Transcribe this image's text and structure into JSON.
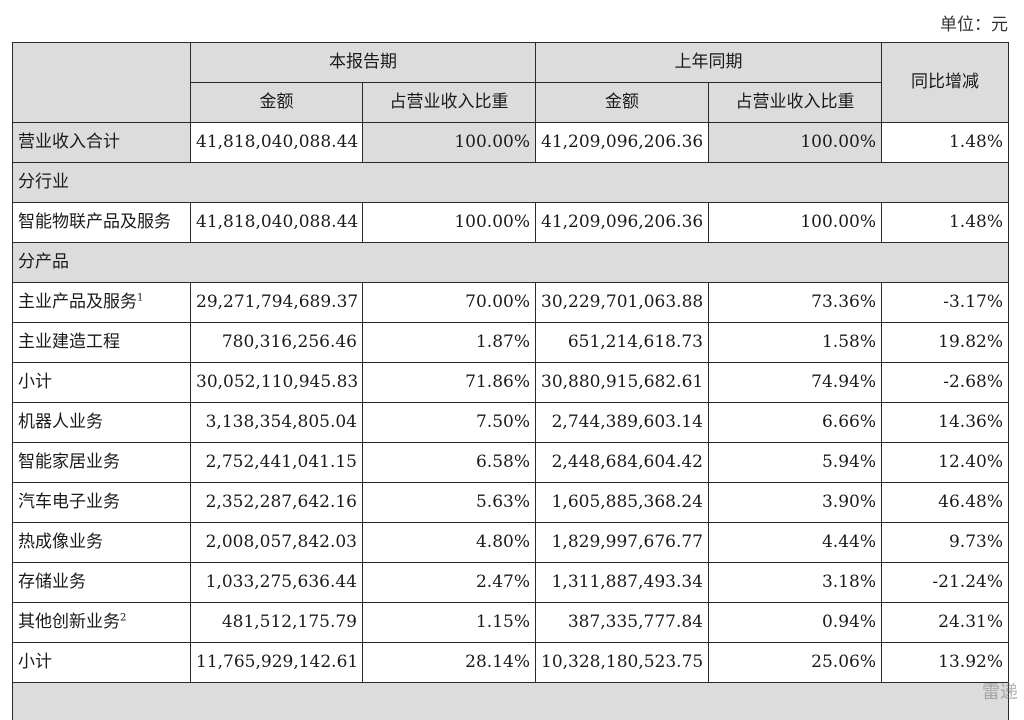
{
  "unit_label": "单位：元",
  "header": {
    "current_period": "本报告期",
    "prior_period": "上年同期",
    "yoy_change": "同比增减",
    "amount": "金额",
    "share": "占营业收入比重"
  },
  "rows": {
    "total": {
      "label": "营业收入合计",
      "cur_amt": "41,818,040,088.44",
      "cur_pct": "100.00%",
      "prev_amt": "41,209,096,206.36",
      "prev_pct": "100.00%",
      "yoy": "1.48%"
    },
    "section_industry": "分行业",
    "iot": {
      "label": "智能物联产品及服务",
      "cur_amt": "41,818,040,088.44",
      "cur_pct": "100.00%",
      "prev_amt": "41,209,096,206.36",
      "prev_pct": "100.00%",
      "yoy": "1.48%"
    },
    "section_product": "分产品",
    "main_products": {
      "label": "主业产品及服务",
      "note": "1",
      "cur_amt": "29,271,794,689.37",
      "cur_pct": "70.00%",
      "prev_amt": "30,229,701,063.88",
      "prev_pct": "73.36%",
      "yoy": "-3.17%"
    },
    "main_construction": {
      "label": "主业建造工程",
      "cur_amt": "780,316,256.46",
      "cur_pct": "1.87%",
      "prev_amt": "651,214,618.73",
      "prev_pct": "1.58%",
      "yoy": "19.82%"
    },
    "subtotal1": {
      "label": "小计",
      "cur_amt": "30,052,110,945.83",
      "cur_pct": "71.86%",
      "prev_amt": "30,880,915,682.61",
      "prev_pct": "74.94%",
      "yoy": "-2.68%"
    },
    "robot": {
      "label": "机器人业务",
      "cur_amt": "3,138,354,805.04",
      "cur_pct": "7.50%",
      "prev_amt": "2,744,389,603.14",
      "prev_pct": "6.66%",
      "yoy": "14.36%"
    },
    "smart_home": {
      "label": "智能家居业务",
      "cur_amt": "2,752,441,041.15",
      "cur_pct": "6.58%",
      "prev_amt": "2,448,684,604.42",
      "prev_pct": "5.94%",
      "yoy": "12.40%"
    },
    "auto": {
      "label": "汽车电子业务",
      "cur_amt": "2,352,287,642.16",
      "cur_pct": "5.63%",
      "prev_amt": "1,605,885,368.24",
      "prev_pct": "3.90%",
      "yoy": "46.48%"
    },
    "thermal": {
      "label": "热成像业务",
      "cur_amt": "2,008,057,842.03",
      "cur_pct": "4.80%",
      "prev_amt": "1,829,997,676.77",
      "prev_pct": "4.44%",
      "yoy": "9.73%"
    },
    "storage": {
      "label": "存储业务",
      "cur_amt": "1,033,275,636.44",
      "cur_pct": "2.47%",
      "prev_amt": "1,311,887,493.34",
      "prev_pct": "3.18%",
      "yoy": "-21.24%"
    },
    "other": {
      "label": "其他创新业务",
      "note": "2",
      "cur_amt": "481,512,175.79",
      "cur_pct": "1.15%",
      "prev_amt": "387,335,777.84",
      "prev_pct": "0.94%",
      "yoy": "24.31%"
    },
    "subtotal2": {
      "label": "小计",
      "cur_amt": "11,765,929,142.61",
      "cur_pct": "28.14%",
      "prev_amt": "10,328,180,523.75",
      "prev_pct": "25.06%",
      "yoy": "13.92%"
    }
  },
  "watermark": "雷递"
}
